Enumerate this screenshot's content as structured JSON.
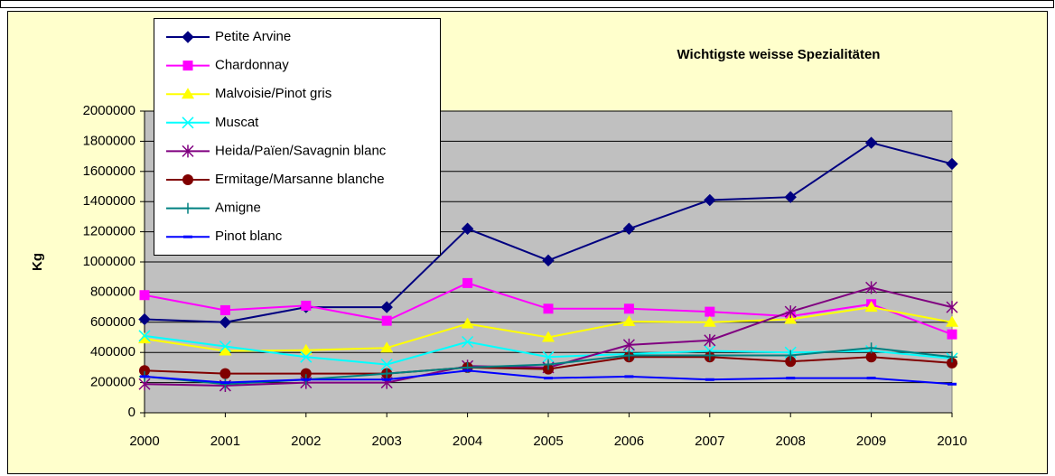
{
  "chart_data": {
    "type": "line",
    "title": "Wichtigste weisse Spezialitäten",
    "y_label": "Kg",
    "categories": [
      "2000",
      "2001",
      "2002",
      "2003",
      "2004",
      "2005",
      "2006",
      "2007",
      "2008",
      "2009",
      "2010"
    ],
    "ylim": [
      0,
      2000000
    ],
    "yticks": [
      0,
      200000,
      400000,
      600000,
      800000,
      1000000,
      1200000,
      1400000,
      1600000,
      1800000,
      2000000
    ],
    "grid": true,
    "background": "#FFFFCC",
    "plot_background": "#C0C0C0",
    "legend": "top-left",
    "series": [
      {
        "name": "Petite Arvine",
        "color": "#000080",
        "marker": "diamond",
        "values": [
          620000,
          600000,
          700000,
          700000,
          1220000,
          1010000,
          1220000,
          1410000,
          1430000,
          1790000,
          1650000
        ]
      },
      {
        "name": "Chardonnay",
        "color": "#FF00FF",
        "marker": "square",
        "values": [
          780000,
          680000,
          710000,
          610000,
          860000,
          690000,
          690000,
          670000,
          640000,
          720000,
          520000
        ]
      },
      {
        "name": "Malvoisie/Pinot gris",
        "color": "#FFFF00",
        "marker": "triangle",
        "values": [
          490000,
          410000,
          415000,
          430000,
          590000,
          500000,
          605000,
          600000,
          620000,
          700000,
          600000
        ]
      },
      {
        "name": "Muscat",
        "color": "#00FFFF",
        "marker": "x",
        "values": [
          510000,
          440000,
          370000,
          320000,
          470000,
          370000,
          390000,
          410000,
          400000,
          410000,
          360000
        ]
      },
      {
        "name": "Heida/Païen/Savagnin blanc",
        "color": "#800080",
        "marker": "asterisk",
        "values": [
          190000,
          180000,
          200000,
          200000,
          310000,
          300000,
          450000,
          480000,
          670000,
          830000,
          700000
        ]
      },
      {
        "name": "Ermitage/Marsanne blanche",
        "color": "#800000",
        "marker": "circle",
        "values": [
          280000,
          260000,
          260000,
          260000,
          300000,
          290000,
          370000,
          370000,
          340000,
          370000,
          330000
        ]
      },
      {
        "name": "Amigne",
        "color": "#008080",
        "marker": "plus",
        "values": [
          240000,
          190000,
          220000,
          260000,
          300000,
          320000,
          380000,
          380000,
          380000,
          430000,
          370000
        ]
      },
      {
        "name": "Pinot blanc",
        "color": "#0000FF",
        "marker": "dash",
        "values": [
          240000,
          200000,
          220000,
          220000,
          280000,
          230000,
          240000,
          220000,
          230000,
          230000,
          190000
        ]
      }
    ]
  }
}
